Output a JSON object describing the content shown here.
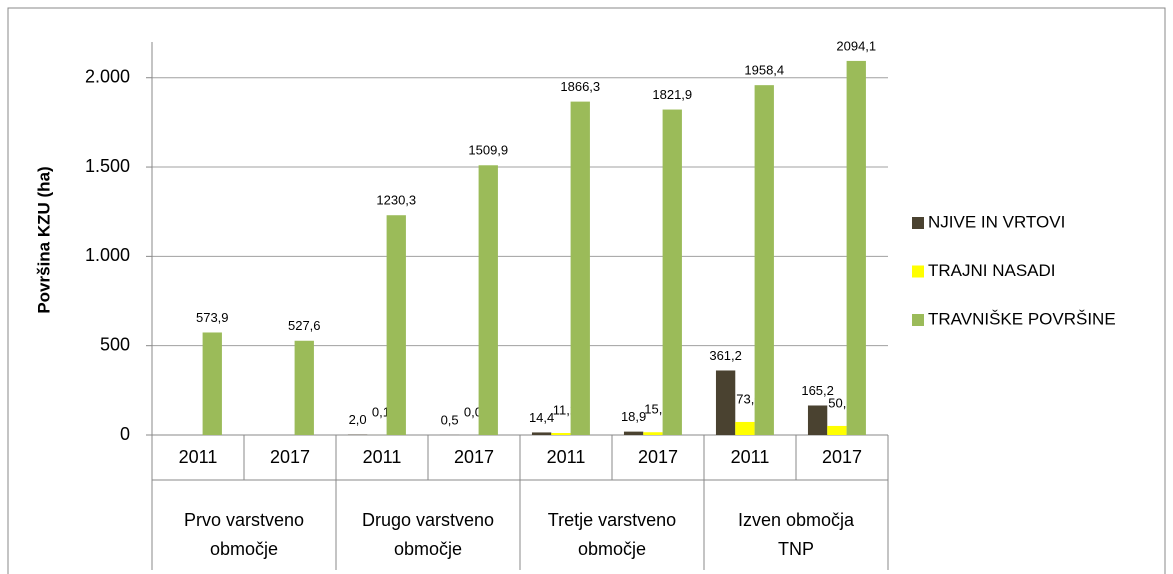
{
  "chart_data": {
    "type": "bar",
    "y_label": "Površina KZU (ha)",
    "categories": [
      "2011",
      "2017",
      "2011",
      "2017",
      "2011",
      "2017",
      "2011",
      "2017"
    ],
    "groups": [
      [
        "Prvo varstveno",
        "območje"
      ],
      [
        "Drugo varstveno",
        "območje"
      ],
      [
        "Tretje varstveno",
        "območje"
      ],
      [
        "Izven območja",
        "TNP"
      ]
    ],
    "series": [
      {
        "name": "NJIVE IN VRTOVI",
        "color": "#4a4230",
        "values": [
          null,
          null,
          2.0,
          0.5,
          14.4,
          18.9,
          361.2,
          165.2
        ],
        "value_labels": [
          null,
          null,
          "2,0",
          "0,5",
          "14,4",
          "18,9",
          "361,2",
          "165,2"
        ]
      },
      {
        "name": "TRAJNI NASADI",
        "color": "#ffff00",
        "values": [
          null,
          null,
          0.1,
          0.0,
          11.2,
          15.5,
          73.0,
          50.7
        ],
        "value_labels": [
          null,
          null,
          "0,1",
          "0,0",
          "11,2",
          "15,5",
          "73,0",
          "50,7"
        ]
      },
      {
        "name": "TRAVNIŠKE POVRŠINE",
        "color": "#9bbb59",
        "values": [
          573.9,
          527.6,
          1230.3,
          1509.9,
          1866.3,
          1821.9,
          1958.4,
          2094.1
        ],
        "value_labels": [
          "573,9",
          "527,6",
          "1230,3",
          "1509,9",
          "1866,3",
          "1821,9",
          "1958,4",
          "2094,1"
        ]
      }
    ],
    "ylim": [
      0,
      2200
    ],
    "yticks": [
      0,
      500,
      {
        "value": 1000,
        "label": "1.000"
      },
      {
        "value": 1500,
        "label": "1.500"
      },
      {
        "value": 2000,
        "label": "2.000"
      }
    ],
    "grid": true,
    "legend": "right"
  }
}
